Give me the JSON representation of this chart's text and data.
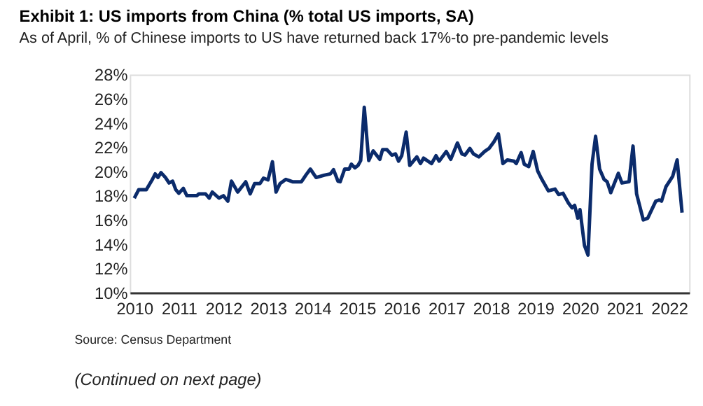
{
  "chart_data": {
    "type": "line",
    "title": "Exhibit 1: US imports from China (% total US imports, SA)",
    "subtitle": "As of April, % of Chinese imports to US have returned back 17%-to pre-pandemic levels",
    "x": [
      2010.0,
      2010.1,
      2010.27,
      2010.4,
      2010.47,
      2010.53,
      2010.6,
      2010.7,
      2010.78,
      2010.86,
      2010.93,
      2011.0,
      2011.1,
      2011.18,
      2011.4,
      2011.45,
      2011.6,
      2011.68,
      2011.75,
      2011.9,
      2012.0,
      2012.1,
      2012.18,
      2012.32,
      2012.5,
      2012.6,
      2012.7,
      2012.82,
      2012.9,
      2013.0,
      2013.1,
      2013.18,
      2013.27,
      2013.4,
      2013.55,
      2013.75,
      2013.85,
      2013.95,
      2014.08,
      2014.27,
      2014.4,
      2014.47,
      2014.57,
      2014.62,
      2014.72,
      2014.82,
      2014.87,
      2014.95,
      2015.02,
      2015.08,
      2015.16,
      2015.26,
      2015.36,
      2015.51,
      2015.57,
      2015.67,
      2015.78,
      2015.86,
      2015.93,
      2016.0,
      2016.1,
      2016.18,
      2016.34,
      2016.42,
      2016.49,
      2016.67,
      2016.77,
      2016.84,
      2017.0,
      2017.1,
      2017.25,
      2017.35,
      2017.42,
      2017.53,
      2017.61,
      2017.73,
      2017.86,
      2017.96,
      2018.07,
      2018.17,
      2018.27,
      2018.37,
      2018.52,
      2018.57,
      2018.68,
      2018.75,
      2018.85,
      2018.95,
      2019.05,
      2019.13,
      2019.29,
      2019.44,
      2019.52,
      2019.62,
      2019.74,
      2019.82,
      2019.88,
      2019.95,
      2020.0,
      2020.1,
      2020.18,
      2020.27,
      2020.35,
      2020.44,
      2020.54,
      2020.61,
      2020.69,
      2020.86,
      2020.94,
      2021.1,
      2021.19,
      2021.27,
      2021.42,
      2021.52,
      2021.7,
      2021.78,
      2021.83,
      2021.93,
      2022.08,
      2022.18,
      2022.29
    ],
    "series": [
      {
        "color": "#0b2b6b",
        "values": [
          17.8,
          18.5,
          18.5,
          19.3,
          19.8,
          19.5,
          19.9,
          19.5,
          19.05,
          19.2,
          18.5,
          18.2,
          18.6,
          18.0,
          18.0,
          18.15,
          18.15,
          17.8,
          18.3,
          17.8,
          18.0,
          17.55,
          19.2,
          18.3,
          19.15,
          18.15,
          19.0,
          19.0,
          19.45,
          19.3,
          20.8,
          18.3,
          19.0,
          19.35,
          19.15,
          19.15,
          19.7,
          20.2,
          19.5,
          19.7,
          19.8,
          20.15,
          19.2,
          19.15,
          20.2,
          20.2,
          20.6,
          20.3,
          20.5,
          20.9,
          25.3,
          20.9,
          21.7,
          21.0,
          21.8,
          21.8,
          21.35,
          21.45,
          20.85,
          21.3,
          23.25,
          20.5,
          21.2,
          20.65,
          21.1,
          20.65,
          21.3,
          20.85,
          21.65,
          21.0,
          22.35,
          21.45,
          21.35,
          21.9,
          21.45,
          21.2,
          21.65,
          21.9,
          22.45,
          23.1,
          20.65,
          20.95,
          20.85,
          20.65,
          21.55,
          20.6,
          20.4,
          21.65,
          20.05,
          19.45,
          18.4,
          18.55,
          18.1,
          18.2,
          17.4,
          17.0,
          17.2,
          16.15,
          16.85,
          13.9,
          13.1,
          20.6,
          22.9,
          20.2,
          19.35,
          19.15,
          18.25,
          19.85,
          19.05,
          19.15,
          22.1,
          18.15,
          16.0,
          16.15,
          17.55,
          17.65,
          17.55,
          18.75,
          19.6,
          20.95,
          16.6
        ]
      }
    ],
    "xlim": [
      2009.9,
      2022.45
    ],
    "xticks": [
      2010,
      2011,
      2012,
      2013,
      2014,
      2015,
      2016,
      2017,
      2018,
      2019,
      2020,
      2021,
      2022
    ],
    "ylim": [
      10,
      28
    ],
    "yticks": [
      {
        "value": 10,
        "label": "10%"
      },
      {
        "value": 12,
        "label": "12%"
      },
      {
        "value": 14,
        "label": "14%"
      },
      {
        "value": 16,
        "label": "16%"
      },
      {
        "value": 18,
        "label": "18%"
      },
      {
        "value": 20,
        "label": "20%"
      },
      {
        "value": 22,
        "label": "22%"
      },
      {
        "value": 24,
        "label": "24%"
      },
      {
        "value": 26,
        "label": "26%"
      },
      {
        "value": 28,
        "label": "28%"
      }
    ],
    "grid": false,
    "legend": false,
    "marker": "none",
    "line_style": "solid",
    "annotations": [
      "Source: Census Department",
      "(Continued on next page)"
    ]
  }
}
